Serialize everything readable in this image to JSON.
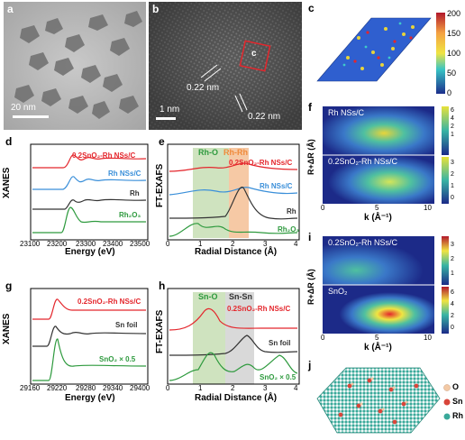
{
  "panels": {
    "a": {
      "label": "a",
      "scale_bar": "20 nm"
    },
    "b": {
      "label": "b",
      "box_label": "c",
      "spacing_1": "0.22 nm",
      "spacing_2": "0.22 nm",
      "scale_bar": "1 nm"
    },
    "c": {
      "label": "c",
      "colorbar_ticks": [
        "200",
        "150",
        "100",
        "50",
        "0"
      ]
    },
    "d": {
      "label": "d",
      "ylabel": "XANES",
      "xlabel": "Energy (eV)",
      "xticks": [
        "23100",
        "23200",
        "23300",
        "23400",
        "23500"
      ],
      "traces": [
        "0.2SnO₂-Rh NSs/C",
        "Rh NSs/C",
        "Rh",
        "Rh₂O₃"
      ]
    },
    "e": {
      "label": "e",
      "ylabel": "FT-EXAFS",
      "xlabel": "Radial Distance (Å)",
      "xticks": [
        "0",
        "1",
        "2",
        "3",
        "4"
      ],
      "band1": "Rh-O",
      "band2": "Rh-Rh",
      "traces": [
        "0.2SnO₂-Rh NSs/C",
        "Rh NSs/C",
        "Rh",
        "Rh₂O₃"
      ]
    },
    "f": {
      "label": "f",
      "ylabel": "R+ΔR (Å)",
      "xlabel": "k (Å⁻¹)",
      "top_title": "Rh NSs/C",
      "bottom_title": "0.2SnO₂-Rh NSs/C",
      "yticks": [
        "6",
        "4",
        "2",
        "0"
      ],
      "xticks": [
        "0",
        "5",
        "10"
      ],
      "cb_top": [
        "6",
        "5",
        "4",
        "3",
        "2",
        "1"
      ],
      "cb_bottom": [
        "3",
        "2",
        "1",
        "0"
      ]
    },
    "g": {
      "label": "g",
      "ylabel": "XANES",
      "xlabel": "Energy (eV)",
      "xticks": [
        "29160",
        "29220",
        "29280",
        "29340",
        "29400"
      ],
      "traces": [
        "0.2SnO₂-Rh NSs/C",
        "Sn foil",
        "SnO₂ × 0.5"
      ]
    },
    "h": {
      "label": "h",
      "ylabel": "FT-EXAFS",
      "xlabel": "Radial Distance (Å)",
      "xticks": [
        "0",
        "1",
        "2",
        "3",
        "4"
      ],
      "band1": "Sn-O",
      "band2": "Sn-Sn",
      "traces": [
        "0.2SnO₂-Rh NSs/C",
        "Sn foil",
        "SnO₂ × 0.5"
      ]
    },
    "i": {
      "label": "i",
      "ylabel": "R+ΔR (Å)",
      "xlabel": "k (Å⁻¹)",
      "top_title": "0.2SnO₂-Rh NSs/C",
      "bottom_title": "SnO₂",
      "yticks": [
        "6",
        "4",
        "2",
        "0"
      ],
      "xticks": [
        "0",
        "5",
        "10"
      ],
      "cb_top": [
        "3",
        "2",
        "1"
      ],
      "cb_bottom": [
        "6",
        "4",
        "2",
        "0"
      ]
    },
    "j": {
      "label": "j",
      "legend": [
        "O",
        "Sn",
        "Rh"
      ]
    }
  },
  "colors": {
    "red": "#e4262c",
    "blue": "#3a8fd9",
    "dark": "#333333",
    "green": "#2e9a3e",
    "bandGreen": "#cfe3bf",
    "bandOrange": "#f6c9a5",
    "bandGray": "#d9d9d9"
  }
}
